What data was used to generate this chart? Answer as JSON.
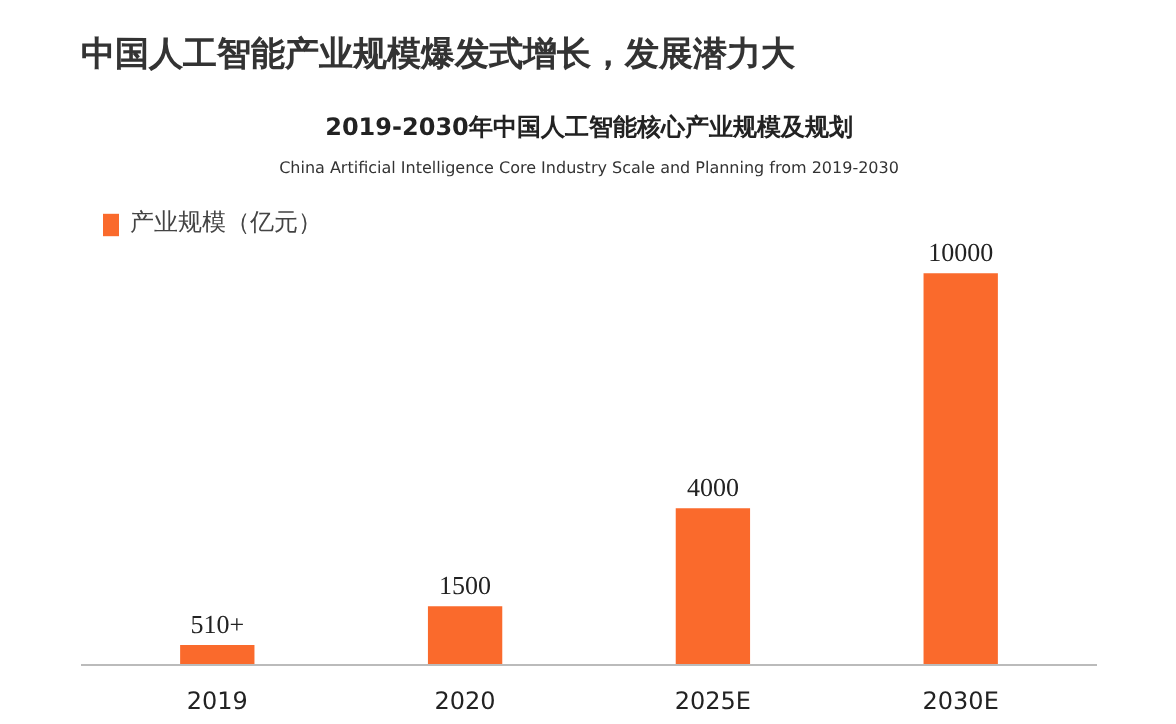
{
  "chart_data": {
    "type": "bar",
    "title": "中国人工智能产业规模爆发式增长，发展潜力大",
    "subtitle": "2019-2030年中国人工智能核心产业规模及规划",
    "annotations": [
      "China Artificial Intelligence Core Industry Scale and Planning from 2019-2030"
    ],
    "categories": [
      "2019",
      "2020",
      "2025E",
      "2030E"
    ],
    "series": [
      {
        "name": "产业规模（亿元）",
        "color": "#fa6a2c",
        "values": [
          510,
          1500,
          4000,
          10000
        ],
        "value_labels": [
          "510+",
          "1500",
          "4000",
          "10000"
        ]
      }
    ],
    "legend": "top left",
    "grid": false
  }
}
